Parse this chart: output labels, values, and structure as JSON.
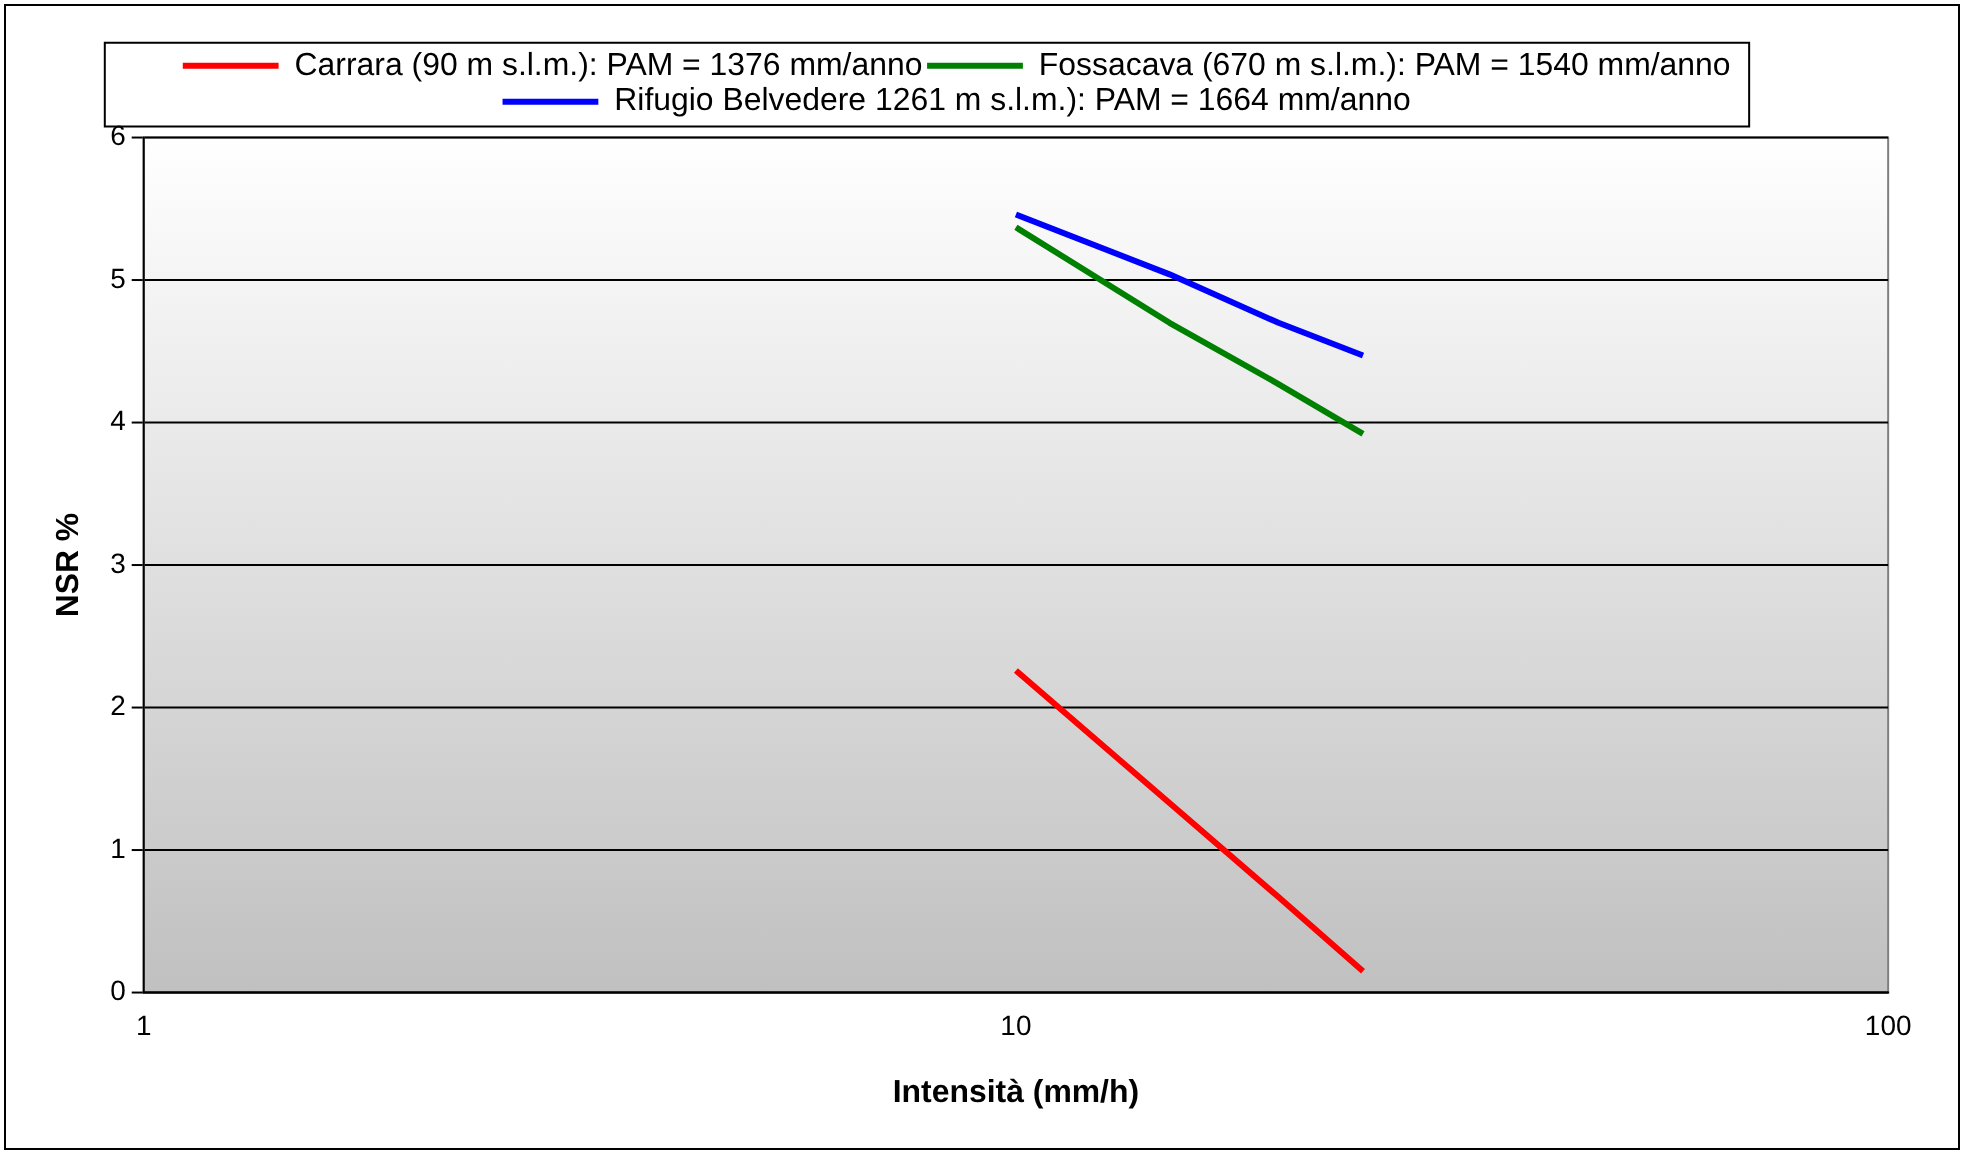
{
  "chart_data": {
    "type": "line",
    "xlabel": "Intensità (mm/h)",
    "ylabel": "NSR %",
    "log": "x",
    "x": [
      10,
      15,
      20,
      25
    ],
    "series": [
      {
        "name": "Carrara (90 m s.l.m.): PAM = 1376 mm/anno",
        "color": "#ff0000",
        "values": [
          2.26,
          1.33,
          0.67,
          0.15
        ]
      },
      {
        "name": "Fossacava (670 m s.l.m.): PAM = 1540 mm/anno",
        "color": "#008000",
        "values": [
          5.37,
          4.7,
          4.27,
          3.92
        ]
      },
      {
        "name": "Rifugio Belvedere 1261 m s.l.m.): PAM = 1664 mm/anno",
        "color": "#0000ff",
        "values": [
          5.46,
          5.04,
          4.7,
          4.47
        ]
      }
    ],
    "xlim": [
      1,
      100
    ],
    "xticks": [
      1,
      10,
      100
    ],
    "ylim": [
      0,
      6
    ],
    "yticks": [
      0,
      1,
      2,
      3,
      4,
      5,
      6
    ],
    "grid": "y",
    "legend": "top",
    "marker": "none",
    "line_style": "solid"
  }
}
